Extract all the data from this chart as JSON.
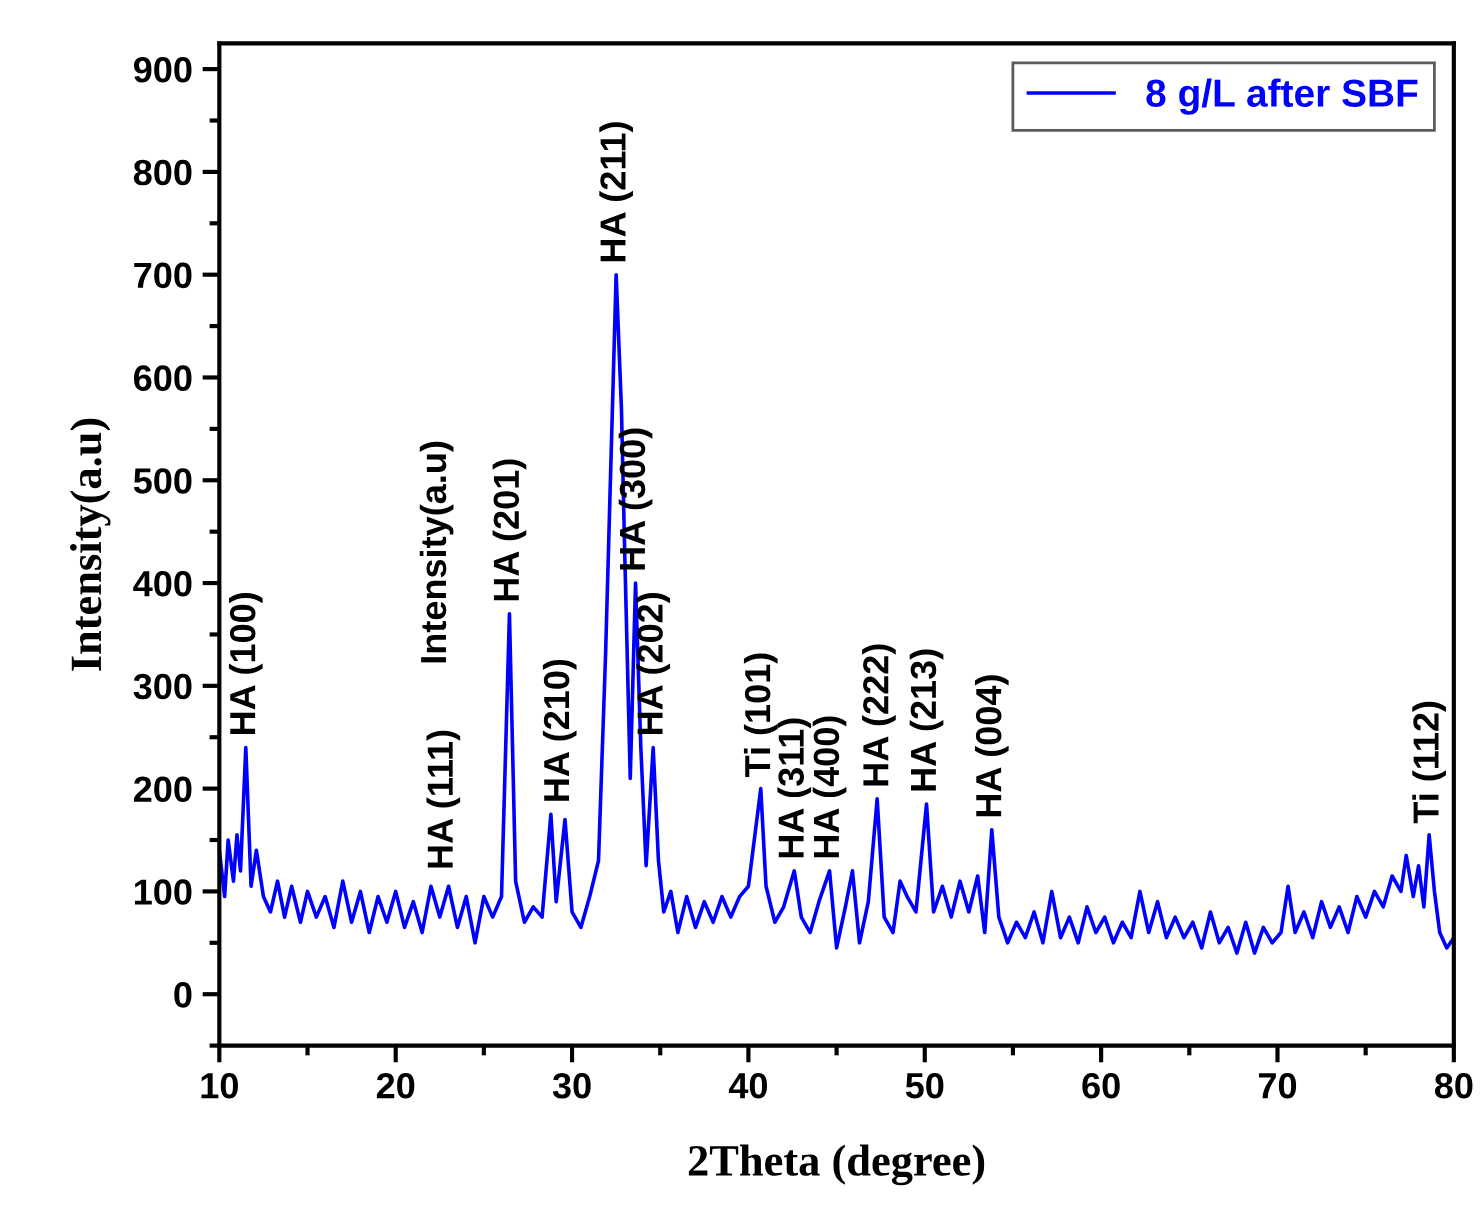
{
  "chart_data": {
    "type": "line",
    "xlabel": "2Theta (degree)",
    "ylabel": "Intensity(a.u)",
    "xlim": [
      10,
      80
    ],
    "xticks": [
      10,
      20,
      30,
      40,
      50,
      60,
      70,
      80
    ],
    "ylim": [
      -50,
      925
    ],
    "yticks": [
      0,
      100,
      200,
      300,
      400,
      500,
      600,
      700,
      800,
      900
    ],
    "grid": false,
    "legend": "top right",
    "marker": "none",
    "line_style": "solid",
    "series": [
      {
        "name": "8 g/L after SBF",
        "color": "#0000ff",
        "x": [
          10.0,
          10.3,
          10.5,
          10.8,
          11.0,
          11.2,
          11.5,
          11.8,
          12.1,
          12.5,
          12.9,
          13.3,
          13.7,
          14.1,
          14.6,
          15.0,
          15.5,
          16.0,
          16.5,
          17.0,
          17.5,
          18.0,
          18.5,
          19.0,
          19.5,
          20.0,
          20.5,
          21.0,
          21.5,
          22.0,
          22.5,
          23.0,
          23.5,
          24.0,
          24.5,
          25.0,
          25.5,
          26.0,
          26.45,
          26.8,
          27.3,
          27.8,
          28.3,
          28.8,
          29.1,
          29.6,
          30.0,
          30.5,
          31.0,
          31.5,
          31.9,
          32.5,
          32.8,
          33.0,
          33.3,
          33.6,
          33.9,
          34.2,
          34.6,
          34.9,
          35.2,
          35.6,
          36.0,
          36.5,
          37.0,
          37.5,
          38.0,
          38.5,
          39.0,
          39.5,
          40.0,
          40.7,
          41.0,
          41.5,
          42.0,
          42.6,
          43.0,
          43.5,
          44.0,
          44.6,
          45.0,
          45.5,
          45.9,
          46.3,
          46.8,
          47.3,
          47.7,
          48.2,
          48.6,
          49.0,
          49.5,
          50.1,
          50.5,
          51.0,
          51.5,
          52.0,
          52.5,
          53.0,
          53.4,
          53.8,
          54.2,
          54.7,
          55.2,
          55.7,
          56.2,
          56.7,
          57.2,
          57.7,
          58.2,
          58.7,
          59.2,
          59.7,
          60.2,
          60.7,
          61.2,
          61.7,
          62.2,
          62.7,
          63.2,
          63.7,
          64.2,
          64.7,
          65.2,
          65.7,
          66.2,
          66.7,
          67.2,
          67.7,
          68.2,
          68.7,
          69.2,
          69.7,
          70.2,
          70.6,
          71.0,
          71.5,
          72.0,
          72.5,
          73.0,
          73.5,
          74.0,
          74.5,
          75.0,
          75.5,
          76.0,
          76.5,
          77.0,
          77.3,
          77.7,
          78.0,
          78.3,
          78.6,
          78.9,
          79.2,
          79.6,
          80.0
        ],
        "values": [
          140,
          95,
          150,
          110,
          155,
          120,
          240,
          105,
          140,
          95,
          80,
          110,
          75,
          105,
          70,
          100,
          75,
          95,
          65,
          110,
          70,
          100,
          60,
          95,
          70,
          100,
          65,
          90,
          60,
          105,
          75,
          105,
          65,
          95,
          50,
          95,
          75,
          95,
          370,
          110,
          70,
          85,
          75,
          175,
          90,
          170,
          80,
          65,
          95,
          130,
          330,
          700,
          570,
          420,
          210,
          400,
          240,
          125,
          240,
          130,
          80,
          100,
          60,
          95,
          65,
          90,
          70,
          95,
          75,
          95,
          105,
          200,
          105,
          70,
          85,
          120,
          75,
          60,
          90,
          120,
          45,
          85,
          120,
          50,
          90,
          190,
          75,
          60,
          110,
          95,
          80,
          185,
          80,
          105,
          75,
          110,
          80,
          115,
          60,
          160,
          75,
          50,
          70,
          55,
          80,
          50,
          100,
          55,
          75,
          50,
          85,
          60,
          75,
          50,
          70,
          55,
          100,
          60,
          90,
          55,
          75,
          55,
          70,
          45,
          80,
          50,
          65,
          40,
          70,
          40,
          65,
          50,
          60,
          105,
          60,
          80,
          55,
          90,
          65,
          85,
          60,
          95,
          75,
          100,
          85,
          115,
          100,
          135,
          95,
          125,
          85,
          155,
          100,
          60,
          45,
          55
        ]
      }
    ],
    "annotations": [
      {
        "text": "HA (100)",
        "x": 11.5,
        "y": 240
      },
      "Intensity(a.u)",
      {
        "text": "HA (111)",
        "x": 22.7,
        "y": 110
      },
      {
        "text": "HA (201)",
        "x": 26.45,
        "y": 370
      },
      {
        "text": "HA (210)",
        "x": 29.3,
        "y": 175
      },
      {
        "text": "HA (211)",
        "x": 32.5,
        "y": 700
      },
      {
        "text": "HA (300)",
        "x": 33.6,
        "y": 400
      },
      {
        "text": "HA (202)",
        "x": 34.6,
        "y": 240
      },
      {
        "text": "Ti (101)",
        "x": 40.7,
        "y": 200
      },
      {
        "text": "HA (311)",
        "x": 42.6,
        "y": 120
      },
      {
        "text": "HA (400)",
        "x": 44.6,
        "y": 120
      },
      {
        "text": "HA (222)",
        "x": 47.4,
        "y": 190
      },
      {
        "text": "HA (213)",
        "x": 50.1,
        "y": 185
      },
      {
        "text": "HA (004)",
        "x": 53.8,
        "y": 160
      },
      {
        "text": "Ti (112)",
        "x": 78.6,
        "y": 155
      }
    ]
  }
}
